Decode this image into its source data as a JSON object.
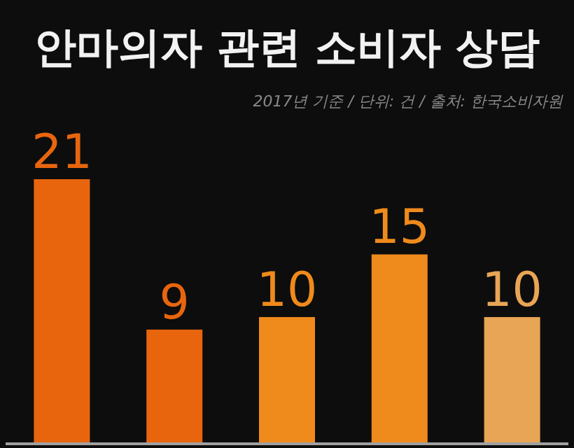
{
  "chart_data": {
    "type": "bar",
    "title": "안마의자 관련 소비자 상담",
    "subtitle": "2017년 기준 / 단위: 건 / 출처: 한국소비자원",
    "categories": [
      null,
      null,
      null,
      null,
      null
    ],
    "values": [
      21,
      9,
      10,
      15,
      10
    ],
    "colors": [
      "#e8650e",
      "#e8650e",
      "#ef8a1c",
      "#ef8a1c",
      "#e8a555"
    ],
    "data_labels": true
  }
}
